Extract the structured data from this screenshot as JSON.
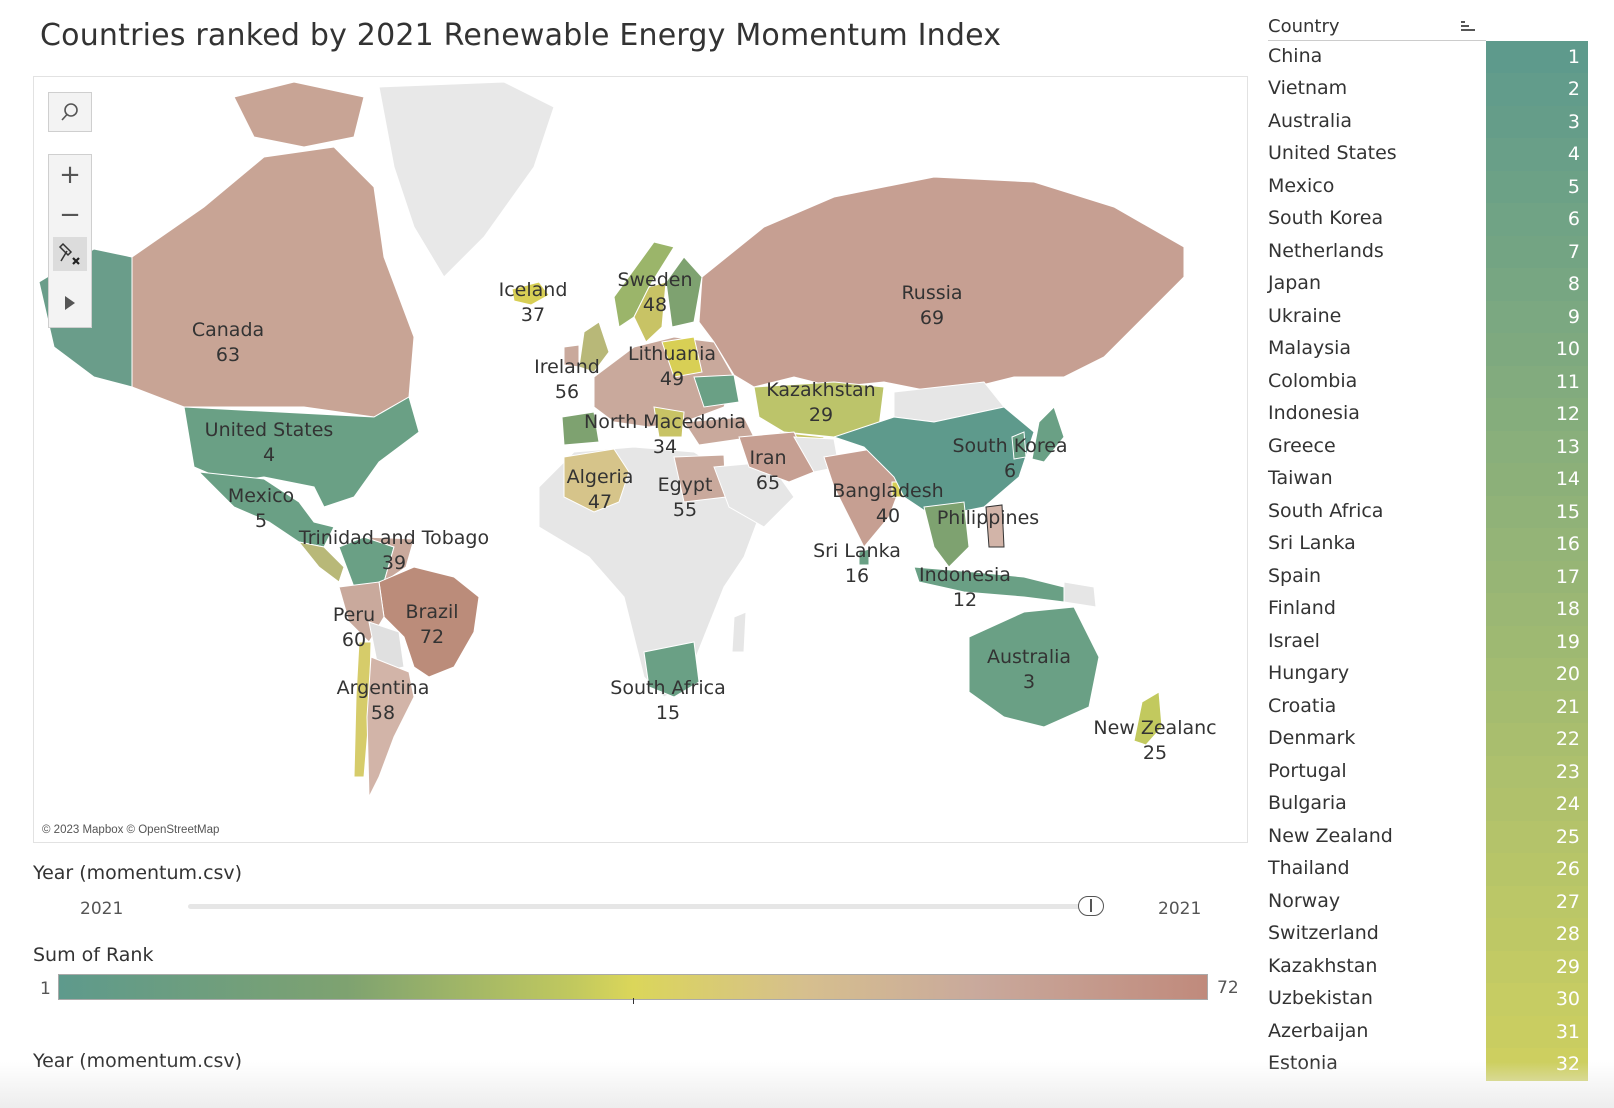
{
  "title": "Countries ranked by 2021 Renewable Energy Momentum Index",
  "map": {
    "credit": "© 2023 Mapbox © OpenStreetMap",
    "labels": [
      {
        "name": "Canada",
        "value": "63"
      },
      {
        "name": "United States",
        "value": "4"
      },
      {
        "name": "Mexico",
        "value": "5"
      },
      {
        "name": "Trinidad and Tobago",
        "value": "39"
      },
      {
        "name": "Peru",
        "value": "60"
      },
      {
        "name": "Brazil",
        "value": "72"
      },
      {
        "name": "Argentina",
        "value": "58"
      },
      {
        "name": "Iceland",
        "value": "37"
      },
      {
        "name": "Ireland",
        "value": "56"
      },
      {
        "name": "Sweden",
        "value": "48"
      },
      {
        "name": "Lithuania",
        "value": "49"
      },
      {
        "name": "North Macedonia",
        "value": "34"
      },
      {
        "name": "Algeria",
        "value": "47"
      },
      {
        "name": "Egypt",
        "value": "55"
      },
      {
        "name": "South Africa",
        "value": "15"
      },
      {
        "name": "Russia",
        "value": "69"
      },
      {
        "name": "Kazakhstan",
        "value": "29"
      },
      {
        "name": "Iran",
        "value": "65"
      },
      {
        "name": "Bangladesh",
        "value": "40"
      },
      {
        "name": "Sri Lanka",
        "value": "16"
      },
      {
        "name": "South Korea",
        "value": "6"
      },
      {
        "name": "Philippines",
        "value": ""
      },
      {
        "name": "Indonesia",
        "value": "12"
      },
      {
        "name": "Australia",
        "value": "3"
      },
      {
        "name": "New Zealanc",
        "value": "25"
      }
    ]
  },
  "toolbar": {
    "search_icon": "search-icon",
    "zoom_in": "+",
    "zoom_out": "−",
    "pin_icon": "unpin-icon",
    "expand_icon": "play-icon"
  },
  "year_filter": {
    "title": "Year (momentum.csv)",
    "min_label": "2021",
    "max_label": "2021"
  },
  "color_legend": {
    "title": "Sum of Rank",
    "min": "1",
    "max": "72"
  },
  "second_filter_title": "Year (momentum.csv)",
  "table": {
    "header": "Country",
    "rows": [
      {
        "country": "China",
        "rank": 1
      },
      {
        "country": "Vietnam",
        "rank": 2
      },
      {
        "country": "Australia",
        "rank": 3
      },
      {
        "country": "United States",
        "rank": 4
      },
      {
        "country": "Mexico",
        "rank": 5
      },
      {
        "country": "South Korea",
        "rank": 6
      },
      {
        "country": "Netherlands",
        "rank": 7
      },
      {
        "country": "Japan",
        "rank": 8
      },
      {
        "country": "Ukraine",
        "rank": 9
      },
      {
        "country": "Malaysia",
        "rank": 10
      },
      {
        "country": "Colombia",
        "rank": 11
      },
      {
        "country": "Indonesia",
        "rank": 12
      },
      {
        "country": "Greece",
        "rank": 13
      },
      {
        "country": "Taiwan",
        "rank": 14
      },
      {
        "country": "South Africa",
        "rank": 15
      },
      {
        "country": "Sri Lanka",
        "rank": 16
      },
      {
        "country": "Spain",
        "rank": 17
      },
      {
        "country": "Finland",
        "rank": 18
      },
      {
        "country": "Israel",
        "rank": 19
      },
      {
        "country": "Hungary",
        "rank": 20
      },
      {
        "country": "Croatia",
        "rank": 21
      },
      {
        "country": "Denmark",
        "rank": 22
      },
      {
        "country": "Portugal",
        "rank": 23
      },
      {
        "country": "Bulgaria",
        "rank": 24
      },
      {
        "country": "New Zealand",
        "rank": 25
      },
      {
        "country": "Thailand",
        "rank": 26
      },
      {
        "country": "Norway",
        "rank": 27
      },
      {
        "country": "Switzerland",
        "rank": 28
      },
      {
        "country": "Kazakhstan",
        "rank": 29
      },
      {
        "country": "Uzbekistan",
        "rank": 30
      },
      {
        "country": "Azerbaijan",
        "rank": 31
      },
      {
        "country": "Estonia",
        "rank": 32
      }
    ]
  },
  "colors": {
    "rank_low": "#5e9a8c",
    "rank_mid": "#dbd65a",
    "rank_high": "#c08a7c",
    "no_data": "#e8e8e8"
  }
}
